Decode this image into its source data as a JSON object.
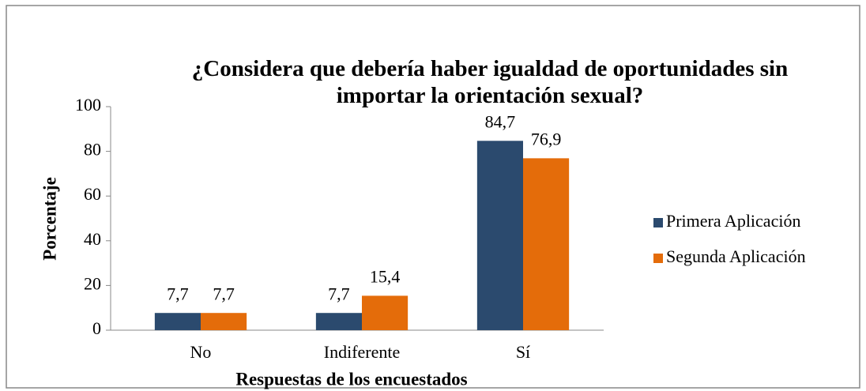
{
  "chart_data": {
    "type": "bar",
    "title": "¿Considera que debería haber igualdad de oportunidades sin importar la orientación sexual?",
    "x_label": "Respuestas de los encuestados",
    "y_label": "Porcentaje",
    "categories": [
      "No",
      "Indiferente",
      "Sí"
    ],
    "series": [
      {
        "name": "Primera Aplicación",
        "color": "#2b4a6e",
        "values": [
          7.7,
          7.7,
          84.7
        ],
        "value_labels": [
          "7,7",
          "7,7",
          "84,7"
        ]
      },
      {
        "name": "Segunda Aplicación",
        "color": "#e46c0a",
        "values": [
          7.7,
          15.4,
          76.9
        ],
        "value_labels": [
          "7,7",
          "15,4",
          "76,9"
        ]
      }
    ],
    "ylim": [
      0,
      100
    ],
    "yticks": [
      0,
      20,
      40,
      60,
      80,
      100
    ],
    "grid": false,
    "legend": "right"
  }
}
